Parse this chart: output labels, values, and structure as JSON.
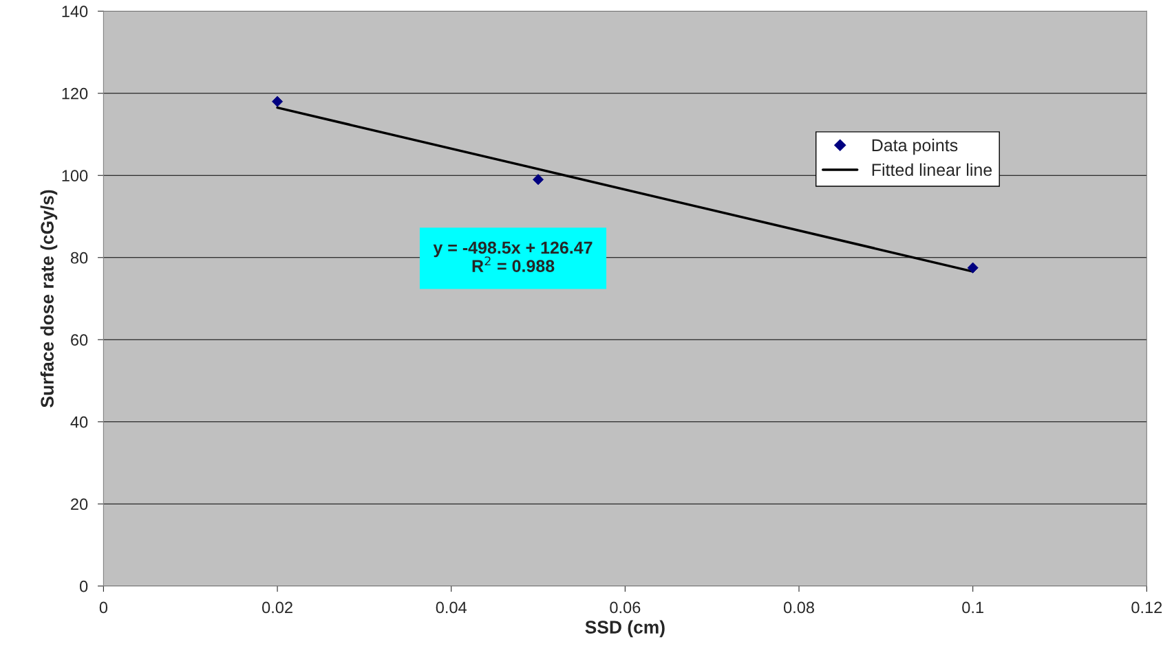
{
  "chart_data": {
    "type": "scatter",
    "xlabel": "SSD (cm)",
    "ylabel": "Surface dose rate (cGy/s)",
    "xlim": [
      0,
      0.12
    ],
    "xticks": [
      0,
      0.02,
      0.04,
      0.06,
      0.08,
      0.1,
      0.12
    ],
    "ylim": [
      0,
      140
    ],
    "yticks": [
      0,
      20,
      40,
      60,
      80,
      100,
      120,
      140
    ],
    "grid": "y",
    "legend": "top right",
    "series": [
      {
        "name": "Data points",
        "type": "scatter",
        "color": "#000080",
        "marker": "diamond",
        "x": [
          0.02,
          0.05,
          0.1
        ],
        "values": [
          118,
          99,
          77.5
        ]
      },
      {
        "name": "Fitted linear line",
        "type": "line",
        "color": "#000000",
        "marker": "none",
        "line_style": "solid",
        "x": [
          0.02,
          0.1
        ],
        "values": [
          116.5,
          76.6
        ]
      }
    ],
    "annotations": [
      "y = -498.5x + 126.47\n        R$^{2}$ = 0.988"
    ]
  }
}
